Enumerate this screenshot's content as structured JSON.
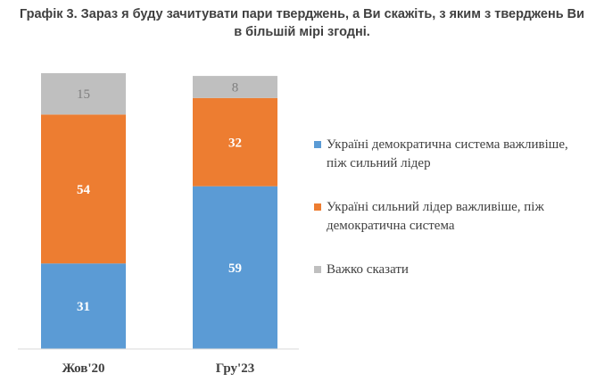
{
  "chart_data": {
    "type": "bar",
    "stacked": true,
    "title": "Графік 3. Зараз я буду зачитувати пари тверджень, а Ви скажіть, з яким з тверджень Ви в більшій мірі згодні.",
    "categories": [
      "Жов'20",
      "Гру'23"
    ],
    "series": [
      {
        "name": "Україні демократична система важливіше, піж сильний лідер",
        "values": [
          31,
          59
        ],
        "color": "#5B9BD5",
        "label_color": "#ffffff"
      },
      {
        "name": "Україні сильний лідер важливіше, піж демократична система",
        "values": [
          54,
          32
        ],
        "color": "#ED7D31",
        "label_color": "#ffffff"
      },
      {
        "name": "Важко сказати",
        "values": [
          15,
          8
        ],
        "color": "#BFBFBF",
        "label_color": "#7F7F7F"
      }
    ],
    "ylim": [
      0,
      100
    ],
    "grid": false,
    "legend_position": "right"
  }
}
